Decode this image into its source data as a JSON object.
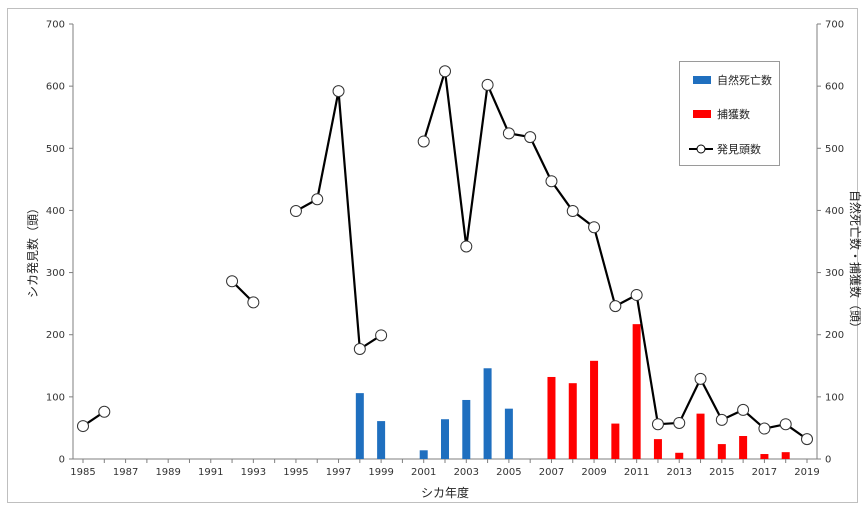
{
  "chart_data": {
    "type": "bar",
    "xlabel": "シカ年度",
    "ylabel_left": "シカ発見数（頭）",
    "ylabel_right": "自然死亡数・捕獲数（頭）",
    "ylim": [
      0,
      700
    ],
    "yticks": [
      0,
      100,
      200,
      300,
      400,
      500,
      600,
      700
    ],
    "x_range": [
      1985,
      2019
    ],
    "xticks": [
      1985,
      1987,
      1989,
      1991,
      1993,
      1995,
      1997,
      1999,
      2001,
      2003,
      2005,
      2007,
      2009,
      2011,
      2013,
      2015,
      2017,
      2019
    ],
    "legend_position": "top-right",
    "series": [
      {
        "name": "自然死亡数",
        "kind": "bar",
        "color": "#1f6fbf",
        "points": [
          [
            1998,
            106
          ],
          [
            1999,
            61
          ],
          [
            2001,
            14
          ],
          [
            2002,
            64
          ],
          [
            2003,
            95
          ],
          [
            2004,
            146
          ],
          [
            2005,
            81
          ]
        ]
      },
      {
        "name": "捕獲数",
        "kind": "bar",
        "color": "#ff0000",
        "points": [
          [
            2007,
            132
          ],
          [
            2008,
            122
          ],
          [
            2009,
            158
          ],
          [
            2010,
            57
          ],
          [
            2011,
            217
          ],
          [
            2012,
            32
          ],
          [
            2013,
            10
          ],
          [
            2014,
            73
          ],
          [
            2015,
            24
          ],
          [
            2016,
            37
          ],
          [
            2017,
            8
          ],
          [
            2018,
            11
          ]
        ]
      },
      {
        "name": "発見頭数",
        "kind": "line",
        "color": "#000000",
        "segments": [
          [
            [
              1985,
              53
            ],
            [
              1986,
              76
            ]
          ],
          [
            [
              1992,
              286
            ],
            [
              1993,
              252
            ]
          ],
          [
            [
              1995,
              399
            ],
            [
              1996,
              418
            ],
            [
              1997,
              592
            ],
            [
              1998,
              177
            ],
            [
              1999,
              199
            ]
          ],
          [
            [
              2001,
              511
            ],
            [
              2002,
              624
            ],
            [
              2003,
              342
            ],
            [
              2004,
              602
            ],
            [
              2005,
              524
            ],
            [
              2006,
              518
            ],
            [
              2007,
              447
            ],
            [
              2008,
              399
            ],
            [
              2009,
              373
            ],
            [
              2010,
              246
            ],
            [
              2011,
              264
            ],
            [
              2012,
              56
            ],
            [
              2013,
              58
            ],
            [
              2014,
              129
            ],
            [
              2015,
              63
            ],
            [
              2016,
              79
            ],
            [
              2017,
              49
            ],
            [
              2018,
              56
            ],
            [
              2019,
              32
            ]
          ]
        ]
      }
    ]
  }
}
